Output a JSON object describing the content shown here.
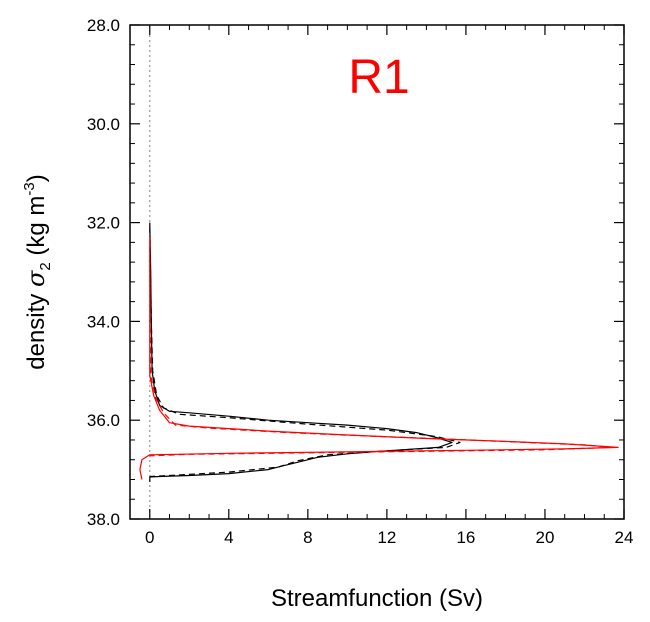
{
  "chart_data": {
    "type": "line",
    "title": "R1",
    "title_color": "#ff0000",
    "xlabel": "Streamfunction (Sv)",
    "ylabel": {
      "prefix": "density ",
      "symbol": "σ",
      "subscript": "2",
      "units_open": " (kg m",
      "superscript": "-3",
      "units_close": ")"
    },
    "xlim": [
      -1,
      24
    ],
    "ylim": [
      38.0,
      28.0
    ],
    "y_inverted": true,
    "x_ticks": [
      0,
      4,
      8,
      12,
      16,
      20,
      24
    ],
    "x_tick_labels": [
      "0",
      "4",
      "8",
      "12",
      "16",
      "20",
      "24"
    ],
    "y_ticks": [
      28,
      30,
      32,
      34,
      36,
      38
    ],
    "y_tick_labels": [
      "28.0",
      "30.0",
      "32.0",
      "34.0",
      "36.0",
      "38.0"
    ],
    "zero_line": true,
    "grid": false,
    "series": [
      {
        "color": "#000000",
        "dash": "solid",
        "points": [
          [
            0,
            32.0
          ],
          [
            0.05,
            33.0
          ],
          [
            0.08,
            34.0
          ],
          [
            0.12,
            35.0
          ],
          [
            0.25,
            35.4
          ],
          [
            0.5,
            35.7
          ],
          [
            1.0,
            35.82
          ],
          [
            2,
            35.85
          ],
          [
            4,
            35.92
          ],
          [
            6,
            36.0
          ],
          [
            8,
            36.05
          ],
          [
            10,
            36.1
          ],
          [
            12,
            36.17
          ],
          [
            13.5,
            36.25
          ],
          [
            14.5,
            36.35
          ],
          [
            15.3,
            36.45
          ],
          [
            14.6,
            36.55
          ],
          [
            12,
            36.62
          ],
          [
            10,
            36.68
          ],
          [
            8.5,
            36.75
          ],
          [
            7.5,
            36.85
          ],
          [
            6.8,
            36.92
          ],
          [
            6,
            37.0
          ],
          [
            4,
            37.08
          ],
          [
            2,
            37.12
          ],
          [
            0.5,
            37.14
          ],
          [
            0,
            37.15
          ],
          [
            0,
            37.25
          ]
        ]
      },
      {
        "color": "#000000",
        "dash": "dashed",
        "points": [
          [
            0,
            32.1
          ],
          [
            0.08,
            34.0
          ],
          [
            0.15,
            35.0
          ],
          [
            0.35,
            35.5
          ],
          [
            0.7,
            35.75
          ],
          [
            1.5,
            35.88
          ],
          [
            4,
            35.95
          ],
          [
            8,
            36.08
          ],
          [
            12,
            36.2
          ],
          [
            14.5,
            36.33
          ],
          [
            15.7,
            36.45
          ],
          [
            15,
            36.55
          ],
          [
            12,
            36.62
          ],
          [
            9,
            36.7
          ],
          [
            7.5,
            36.82
          ],
          [
            6.5,
            36.95
          ],
          [
            4,
            37.05
          ],
          [
            1,
            37.12
          ],
          [
            0,
            37.14
          ]
        ]
      },
      {
        "color": "#ff0000",
        "dash": "solid",
        "points": [
          [
            0,
            32.4
          ],
          [
            0,
            34.0
          ],
          [
            0,
            35.1
          ],
          [
            0.2,
            35.5
          ],
          [
            0.5,
            35.8
          ],
          [
            1.0,
            36.05
          ],
          [
            2,
            36.12
          ],
          [
            6,
            36.22
          ],
          [
            10,
            36.3
          ],
          [
            14,
            36.37
          ],
          [
            18,
            36.43
          ],
          [
            21,
            36.48
          ],
          [
            23.7,
            36.55
          ],
          [
            21,
            36.58
          ],
          [
            16,
            36.61
          ],
          [
            10,
            36.64
          ],
          [
            4,
            36.67
          ],
          [
            0,
            36.7
          ],
          [
            -0.4,
            36.8
          ],
          [
            -0.5,
            37.0
          ],
          [
            -0.4,
            37.2
          ]
        ]
      },
      {
        "color": "#ff0000",
        "dash": "dashed",
        "points": [
          [
            0,
            32.3
          ],
          [
            0.02,
            34.0
          ],
          [
            0.05,
            35.1
          ],
          [
            0.3,
            35.55
          ],
          [
            0.7,
            35.85
          ],
          [
            1.3,
            36.1
          ],
          [
            3,
            36.16
          ],
          [
            7,
            36.25
          ],
          [
            11,
            36.32
          ],
          [
            15,
            36.38
          ],
          [
            19,
            36.45
          ],
          [
            22,
            36.5
          ],
          [
            23.4,
            36.55
          ],
          [
            20,
            36.6
          ],
          [
            14,
            36.63
          ],
          [
            8,
            36.66
          ],
          [
            2,
            36.69
          ],
          [
            0,
            36.72
          ]
        ]
      }
    ]
  }
}
